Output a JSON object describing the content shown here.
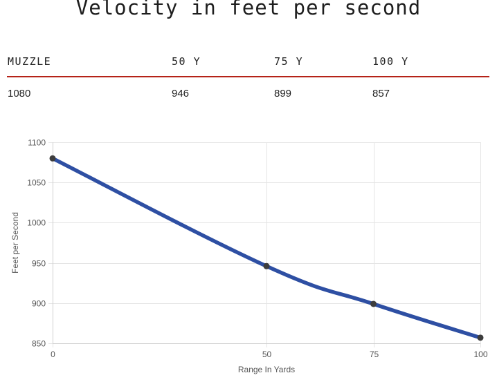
{
  "title": "Velocity in feet per second",
  "table": {
    "headers": [
      "MUZZLE",
      "50 Y",
      "75 Y",
      "100 Y"
    ],
    "values": [
      "1080",
      "946",
      "899",
      "857"
    ],
    "rule_color": "#b52318"
  },
  "chart_data": {
    "type": "line",
    "x": [
      0,
      50,
      75,
      100
    ],
    "series": [
      {
        "values": [
          1080,
          946,
          899,
          857
        ]
      }
    ],
    "xlabel": "Range In Yards",
    "ylabel": "Feet per Second",
    "xlim": [
      0,
      100
    ],
    "ylim": [
      850,
      1100
    ],
    "xticks": [
      0,
      50,
      75,
      100
    ],
    "yticks": [
      850,
      900,
      950,
      1000,
      1050,
      1100
    ],
    "grid": true,
    "smooth": true,
    "line_color": "#2e4fa3",
    "point_color": "#3d3d3d",
    "grid_color": "#e4e4e4"
  }
}
